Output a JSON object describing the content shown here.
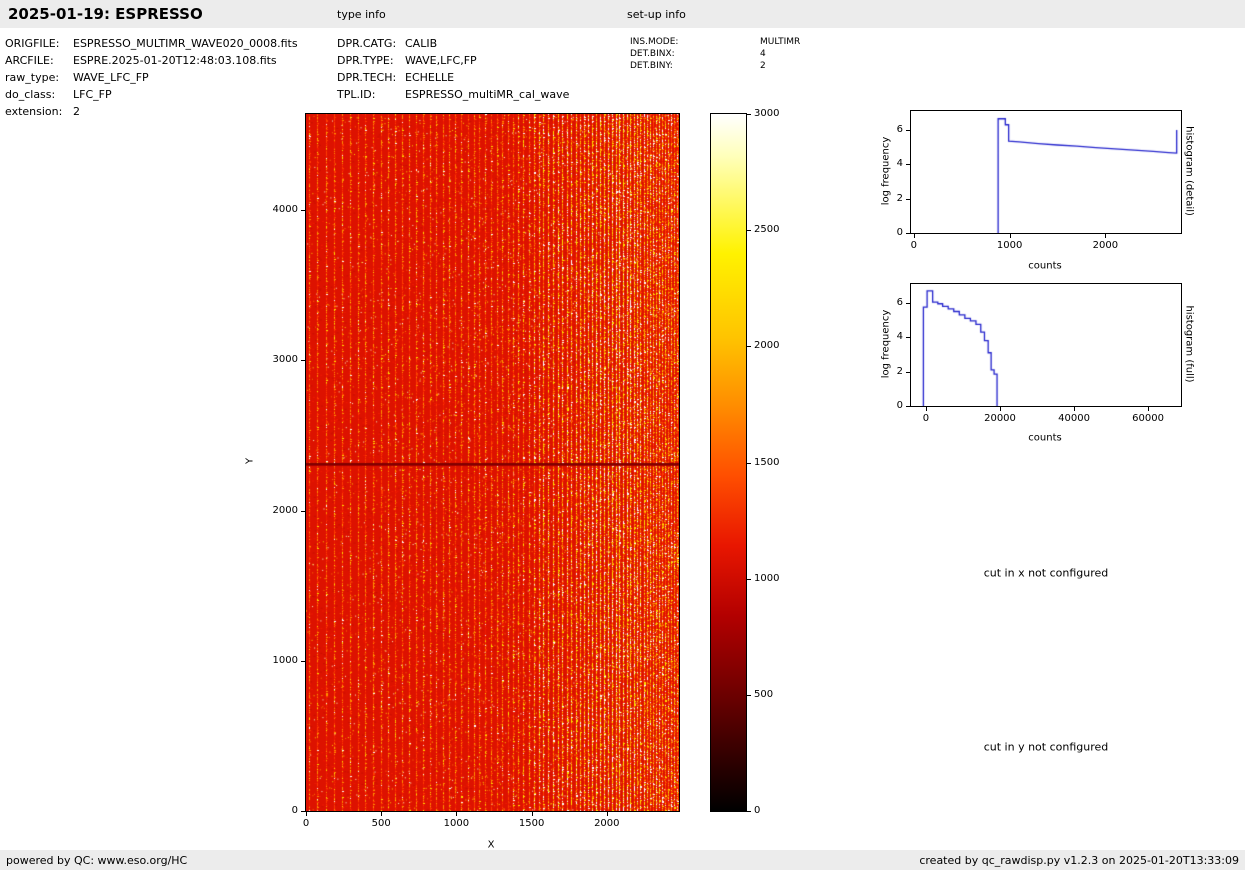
{
  "header": {
    "title": "2025-01-19: ESPRESSO",
    "type_info_label": "type info",
    "setup_info_label": "set-up info"
  },
  "file_info": {
    "rows": [
      {
        "label": "ORIGFILE:",
        "value": "ESPRESSO_MULTIMR_WAVE020_0008.fits"
      },
      {
        "label": "ARCFILE:",
        "value": "ESPRE.2025-01-20T12:48:03.108.fits"
      },
      {
        "label": "raw_type:",
        "value": "WAVE_LFC_FP"
      },
      {
        "label": "do_class:",
        "value": "LFC_FP"
      },
      {
        "label": "extension:",
        "value": "2"
      }
    ]
  },
  "type_info": {
    "rows": [
      {
        "label": "DPR.CATG:",
        "value": "CALIB"
      },
      {
        "label": "DPR.TYPE:",
        "value": "WAVE,LFC,FP"
      },
      {
        "label": "DPR.TECH:",
        "value": "ECHELLE"
      },
      {
        "label": "TPL.ID:",
        "value": "ESPRESSO_multiMR_cal_wave"
      }
    ]
  },
  "setup_info": {
    "rows": [
      {
        "label": "INS.MODE:",
        "value": "MULTIMR"
      },
      {
        "label": "DET.BINX:",
        "value": "4"
      },
      {
        "label": "DET.BINY:",
        "value": "2"
      }
    ]
  },
  "notices": {
    "cut_x": "cut in x not configured",
    "cut_y": "cut in y not configured"
  },
  "footer": {
    "left": "powered by QC: www.eso.org/HC",
    "right": "created by qc_rawdisp.py v1.2.3 on 2025-01-20T13:33:09"
  },
  "chart_data": [
    {
      "type": "heatmap",
      "name": "raw-frame-display",
      "xlabel": "X",
      "ylabel": "Y",
      "xlim": [
        0,
        2480
      ],
      "ylim": [
        0,
        4640
      ],
      "xticks": [
        0,
        500,
        1000,
        1500,
        2000
      ],
      "yticks": [
        0,
        1000,
        2000,
        3000,
        4000
      ],
      "colormap": "hot",
      "colorbar": {
        "vmin": 0,
        "vmax": 3000,
        "ticks": [
          0,
          500,
          1000,
          1500,
          2000,
          2500,
          3000
        ]
      },
      "features": {
        "gap_row_y": 2320,
        "bright_band_x": [
          1550,
          2250
        ],
        "description": "dense red vertical echelle-order stripes with yellow/white speckles; stripe spacing decreases and brightness increases toward the right; dark horizontal detector gap line across full width at y=2320"
      }
    },
    {
      "type": "line",
      "name": "histogram-detail",
      "step": true,
      "right_label": "histogram (detail)",
      "xlabel": "counts",
      "ylabel": "log frequency",
      "xlim": [
        -30,
        2790
      ],
      "ylim": [
        0,
        7.1
      ],
      "xticks": [
        0,
        1000,
        2000
      ],
      "yticks": [
        0,
        2,
        4,
        6
      ],
      "color": "#2222cc",
      "points": [
        [
          880,
          0
        ],
        [
          880,
          6.65
        ],
        [
          955,
          6.65
        ],
        [
          955,
          6.3
        ],
        [
          990,
          6.3
        ],
        [
          990,
          5.35
        ],
        [
          1100,
          5.3
        ],
        [
          1300,
          5.2
        ],
        [
          1500,
          5.12
        ],
        [
          1700,
          5.05
        ],
        [
          1900,
          4.97
        ],
        [
          2100,
          4.9
        ],
        [
          2300,
          4.82
        ],
        [
          2500,
          4.75
        ],
        [
          2660,
          4.68
        ],
        [
          2745,
          4.65
        ],
        [
          2745,
          6.0
        ]
      ]
    },
    {
      "type": "line",
      "name": "histogram-full",
      "step": true,
      "right_label": "histogram (full)",
      "xlabel": "counts",
      "ylabel": "log frequency",
      "xlim": [
        -4050,
        68900
      ],
      "ylim": [
        0,
        7.1
      ],
      "xticks": [
        0,
        20000,
        40000,
        60000
      ],
      "yticks": [
        0,
        2,
        4,
        6
      ],
      "color": "#2222cc",
      "points": [
        [
          -700,
          0
        ],
        [
          -700,
          5.75
        ],
        [
          300,
          5.75
        ],
        [
          300,
          6.7
        ],
        [
          1800,
          6.7
        ],
        [
          1800,
          6.05
        ],
        [
          3200,
          6.05
        ],
        [
          3200,
          5.95
        ],
        [
          4500,
          5.95
        ],
        [
          4500,
          5.8
        ],
        [
          6000,
          5.8
        ],
        [
          6000,
          5.65
        ],
        [
          7500,
          5.65
        ],
        [
          7500,
          5.5
        ],
        [
          9000,
          5.5
        ],
        [
          9000,
          5.3
        ],
        [
          10500,
          5.3
        ],
        [
          10500,
          5.1
        ],
        [
          12000,
          5.1
        ],
        [
          12000,
          4.95
        ],
        [
          13500,
          4.95
        ],
        [
          13500,
          4.75
        ],
        [
          14800,
          4.75
        ],
        [
          14800,
          4.3
        ],
        [
          15800,
          4.3
        ],
        [
          15800,
          3.8
        ],
        [
          16800,
          3.8
        ],
        [
          16800,
          3.1
        ],
        [
          17600,
          3.1
        ],
        [
          17600,
          2.1
        ],
        [
          18400,
          2.1
        ],
        [
          18400,
          1.85
        ],
        [
          19200,
          1.85
        ],
        [
          19200,
          0
        ]
      ]
    }
  ]
}
